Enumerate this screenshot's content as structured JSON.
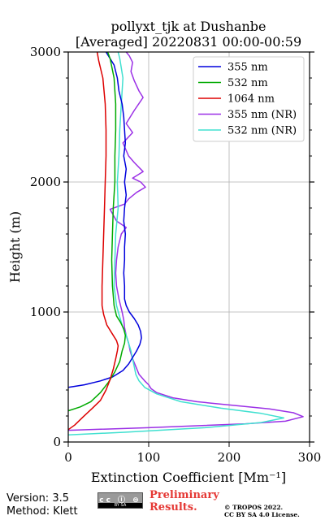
{
  "chart_data": {
    "type": "line",
    "title_line1": "pollyxt_tjk at Dushanbe",
    "title_line2": "[Averaged] 20220831 00:00-00:59",
    "xlabel": "Extinction Coefficient [Mm⁻¹]",
    "ylabel": "Height (m)",
    "xlim": [
      0,
      300
    ],
    "ylim": [
      0,
      3000
    ],
    "xticks": [
      "0",
      "100",
      "200",
      "300"
    ],
    "yticks": [
      "0",
      "1000",
      "2000",
      "3000"
    ],
    "grid": true,
    "legend_position": "top-right",
    "series": [
      {
        "name": "355 nm",
        "color": "#0000dd",
        "points": [
          [
            0,
            420
          ],
          [
            20,
            440
          ],
          [
            40,
            470
          ],
          [
            55,
            500
          ],
          [
            68,
            550
          ],
          [
            75,
            600
          ],
          [
            80,
            650
          ],
          [
            85,
            700
          ],
          [
            89,
            750
          ],
          [
            91,
            800
          ],
          [
            90,
            850
          ],
          [
            87,
            900
          ],
          [
            82,
            950
          ],
          [
            76,
            1000
          ],
          [
            72,
            1050
          ],
          [
            70,
            1100
          ],
          [
            70,
            1200
          ],
          [
            69,
            1300
          ],
          [
            70,
            1400
          ],
          [
            70,
            1500
          ],
          [
            71,
            1600
          ],
          [
            69,
            1700
          ],
          [
            70,
            1800
          ],
          [
            72,
            1900
          ],
          [
            70,
            2000
          ],
          [
            72,
            2100
          ],
          [
            69,
            2200
          ],
          [
            71,
            2300
          ],
          [
            70,
            2400
          ],
          [
            69,
            2500
          ],
          [
            67,
            2600
          ],
          [
            63,
            2700
          ],
          [
            61,
            2800
          ],
          [
            57,
            2900
          ],
          [
            50,
            2970
          ],
          [
            47,
            3000
          ]
        ]
      },
      {
        "name": "532 nm",
        "color": "#00aa00",
        "points": [
          [
            0,
            240
          ],
          [
            15,
            270
          ],
          [
            28,
            310
          ],
          [
            40,
            380
          ],
          [
            50,
            460
          ],
          [
            58,
            540
          ],
          [
            64,
            620
          ],
          [
            67,
            700
          ],
          [
            70,
            760
          ],
          [
            71,
            820
          ],
          [
            69,
            870
          ],
          [
            65,
            920
          ],
          [
            60,
            970
          ],
          [
            57,
            1050
          ],
          [
            55,
            1200
          ],
          [
            54,
            1400
          ],
          [
            55,
            1600
          ],
          [
            56,
            1800
          ],
          [
            58,
            2000
          ],
          [
            58,
            2200
          ],
          [
            59,
            2400
          ],
          [
            59,
            2600
          ],
          [
            57,
            2800
          ],
          [
            52,
            2950
          ],
          [
            49,
            3000
          ]
        ]
      },
      {
        "name": "1064 nm",
        "color": "#dd0000",
        "points": [
          [
            0,
            95
          ],
          [
            8,
            130
          ],
          [
            18,
            190
          ],
          [
            30,
            260
          ],
          [
            40,
            320
          ],
          [
            47,
            400
          ],
          [
            52,
            480
          ],
          [
            56,
            560
          ],
          [
            59,
            640
          ],
          [
            61,
            700
          ],
          [
            62,
            740
          ],
          [
            60,
            780
          ],
          [
            55,
            830
          ],
          [
            48,
            900
          ],
          [
            44,
            980
          ],
          [
            42,
            1050
          ],
          [
            42,
            1200
          ],
          [
            43,
            1400
          ],
          [
            44,
            1600
          ],
          [
            45,
            1800
          ],
          [
            46,
            2000
          ],
          [
            47,
            2200
          ],
          [
            47,
            2400
          ],
          [
            46,
            2600
          ],
          [
            43,
            2800
          ],
          [
            38,
            2930
          ],
          [
            36,
            3000
          ]
        ]
      },
      {
        "name": "355 nm (NR)",
        "color": "#9b30e6",
        "points": [
          [
            0,
            90
          ],
          [
            100,
            110
          ],
          [
            220,
            140
          ],
          [
            270,
            160
          ],
          [
            292,
            195
          ],
          [
            280,
            225
          ],
          [
            250,
            255
          ],
          [
            200,
            285
          ],
          [
            160,
            310
          ],
          [
            130,
            340
          ],
          [
            110,
            380
          ],
          [
            103,
            410
          ],
          [
            100,
            440
          ],
          [
            95,
            470
          ],
          [
            88,
            520
          ],
          [
            84,
            580
          ],
          [
            80,
            640
          ],
          [
            77,
            700
          ],
          [
            75,
            760
          ],
          [
            72,
            820
          ],
          [
            70,
            880
          ],
          [
            69,
            940
          ],
          [
            67,
            1000
          ],
          [
            63,
            1100
          ],
          [
            60,
            1200
          ],
          [
            59,
            1300
          ],
          [
            60,
            1400
          ],
          [
            62,
            1500
          ],
          [
            66,
            1600
          ],
          [
            72,
            1650
          ],
          [
            60,
            1700
          ],
          [
            52,
            1790
          ],
          [
            70,
            1830
          ],
          [
            75,
            1870
          ],
          [
            85,
            1920
          ],
          [
            96,
            1960
          ],
          [
            90,
            2000
          ],
          [
            80,
            2030
          ],
          [
            93,
            2080
          ],
          [
            82,
            2150
          ],
          [
            75,
            2200
          ],
          [
            68,
            2300
          ],
          [
            80,
            2380
          ],
          [
            72,
            2450
          ],
          [
            82,
            2550
          ],
          [
            93,
            2650
          ],
          [
            88,
            2700
          ],
          [
            82,
            2780
          ],
          [
            78,
            2850
          ],
          [
            80,
            2920
          ],
          [
            76,
            2970
          ],
          [
            72,
            3000
          ]
        ]
      },
      {
        "name": "532 nm (NR)",
        "color": "#40e0d0",
        "points": [
          [
            0,
            55
          ],
          [
            70,
            75
          ],
          [
            170,
            110
          ],
          [
            240,
            150
          ],
          [
            268,
            185
          ],
          [
            240,
            220
          ],
          [
            190,
            260
          ],
          [
            140,
            310
          ],
          [
            110,
            370
          ],
          [
            95,
            420
          ],
          [
            88,
            470
          ],
          [
            84,
            520
          ],
          [
            82,
            580
          ],
          [
            80,
            640
          ],
          [
            78,
            700
          ],
          [
            75,
            760
          ],
          [
            72,
            820
          ],
          [
            68,
            880
          ],
          [
            64,
            960
          ],
          [
            60,
            1050
          ],
          [
            57,
            1200
          ],
          [
            58,
            1400
          ],
          [
            59,
            1600
          ],
          [
            62,
            1800
          ],
          [
            61,
            2000
          ],
          [
            63,
            2200
          ],
          [
            64,
            2400
          ],
          [
            66,
            2600
          ],
          [
            68,
            2800
          ],
          [
            64,
            2950
          ],
          [
            62,
            3000
          ]
        ]
      }
    ]
  },
  "footer": {
    "version": "Version: 3.5",
    "method": "Method: Klett",
    "license_badge": "cc ⓘ ⊜",
    "license_badge_sub": "BY  SA",
    "preliminary_line1": "Preliminary",
    "preliminary_line2": "Results.",
    "copyright_line1": "© TROPOS 2022.",
    "copyright_line2": "CC BY SA 4.0 License."
  }
}
